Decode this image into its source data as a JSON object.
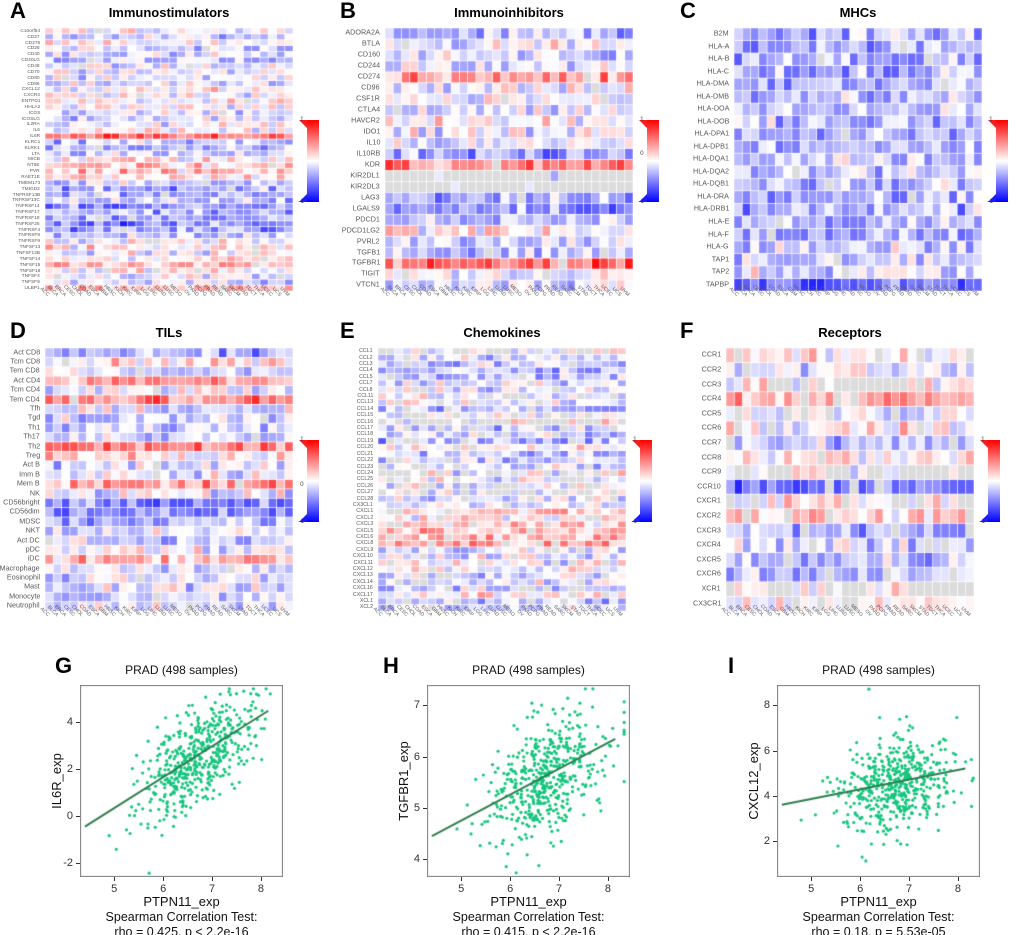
{
  "figure": {
    "heatmap_colors": {
      "positive": "#ff0000",
      "negative": "#0000ff",
      "na": "#dcdcdc"
    },
    "scatter_colors": {
      "point": "#17c57e",
      "line": "#2e7d4e"
    }
  },
  "cancer_types": [
    "ACC",
    "BLCA",
    "BRCA",
    "CESC",
    "CHOL",
    "COAD",
    "ESCA",
    "GBM",
    "HNSC",
    "KICH",
    "KIRC",
    "KIRP",
    "LGG",
    "LIHC",
    "LUAD",
    "LUSC",
    "MESO",
    "OV",
    "PAAD",
    "PCPG",
    "PRAD",
    "READ",
    "SARC",
    "SKCM",
    "STAD",
    "TGCT",
    "THCA",
    "UCEC",
    "UCS",
    "UVM"
  ],
  "chart_data": [
    {
      "type": "heatmap",
      "letter": "A",
      "title": "Immunostimulators",
      "value_range": [
        -1,
        1
      ],
      "seed": 101,
      "base_na": 0.03,
      "rows": [
        "C10orf54",
        "CD27",
        "CD276",
        "CD28",
        "CD40",
        "CD40LG",
        "CD48",
        "CD70",
        "CD80",
        "CD86",
        "CXCL12",
        "CXCR4",
        "ENTPD1",
        "HHLA2",
        "ICOS",
        "ICOSLG",
        "IL2RA",
        "IL6",
        "IL6R",
        "KLRC1",
        "KLRK1",
        "LTA",
        "MICB",
        "NT5E",
        "PVR",
        "RAET1E",
        "TMEM173",
        "TMIGD2",
        "TNFRSF13B",
        "TNFRSF13C",
        "TNFRSF14",
        "TNFRSF17",
        "TNFRSF18",
        "TNFRSF25",
        "TNFRSF4",
        "TNFRSF8",
        "TNFRSF9",
        "TNFSF13",
        "TNFSF13B",
        "TNFSF14",
        "TNFSF15",
        "TNFSF18",
        "TNFSF4",
        "TNFSF9",
        "ULBP1"
      ],
      "row_bias": [
        0.05,
        -0.15,
        0,
        -0.15,
        -0.1,
        -0.15,
        -0.1,
        -0.05,
        -0.1,
        -0.1,
        0.05,
        0,
        0.05,
        -0.05,
        -0.1,
        -0.1,
        -0.05,
        0,
        0.55,
        -0.25,
        -0.25,
        -0.2,
        0.1,
        0.15,
        0.2,
        0.1,
        -0.2,
        -0.3,
        -0.3,
        -0.25,
        -0.45,
        -0.3,
        -0.35,
        -0.5,
        -0.4,
        -0.15,
        -0.05,
        0.1,
        -0.05,
        0.1,
        0.35,
        0.05,
        -0.05,
        -0.1,
        0.3
      ],
      "row_na": {},
      "legend_ticks": [
        {
          "label": "1",
          "pos": 0
        },
        {
          "label": "-1",
          "pos": 1
        }
      ]
    },
    {
      "type": "heatmap",
      "letter": "B",
      "title": "Immunoinhibitors",
      "value_range": [
        -1,
        1
      ],
      "seed": 202,
      "base_na": 0.03,
      "rows": [
        "ADORA2A",
        "BTLA",
        "CD160",
        "CD244",
        "CD274",
        "CD96",
        "CSF1R",
        "CTLA4",
        "HAVCR2",
        "IDO1",
        "IL10",
        "IL10RB",
        "KDR",
        "KIR2DL1",
        "KIR2DL3",
        "LAG3",
        "LGALS9",
        "PDCD1",
        "PDCD1LG2",
        "PVRL2",
        "TGFB1",
        "TGFBR1",
        "TIGIT",
        "VTCN1"
      ],
      "row_bias": [
        -0.3,
        -0.05,
        -0.15,
        -0.1,
        0.4,
        -0.05,
        0,
        -0.1,
        0,
        -0.05,
        -0.1,
        -0.35,
        0.5,
        0,
        0,
        -0.35,
        -0.4,
        -0.25,
        0.1,
        -0.15,
        -0.2,
        0.55,
        0,
        -0.1
      ],
      "row_na": {
        "13": 0.95,
        "14": 0.95
      },
      "legend_ticks": [
        {
          "label": "1",
          "pos": 0
        },
        {
          "label": "0",
          "pos": 0.41
        },
        {
          "label": "-1",
          "pos": 1
        }
      ]
    },
    {
      "type": "heatmap",
      "letter": "C",
      "title": "MHCs",
      "value_range": [
        -1,
        1
      ],
      "seed": 303,
      "base_na": 0.015,
      "rows": [
        "B2M",
        "HLA-A",
        "HLA-B",
        "HLA-C",
        "HLA-DMA",
        "HLA-DMB",
        "HLA-DOA",
        "HLA-DOB",
        "HLA-DPA1",
        "HLA-DPB1",
        "HLA-DQA1",
        "HLA-DQA2",
        "HLA-DQB1",
        "HLA-DRA",
        "HLA-DRB1",
        "HLA-E",
        "HLA-F",
        "HLA-G",
        "TAP1",
        "TAP2",
        "TAPBP"
      ],
      "row_bias": [
        -0.3,
        -0.35,
        -0.3,
        -0.3,
        -0.35,
        -0.25,
        -0.2,
        -0.25,
        -0.3,
        -0.3,
        -0.2,
        -0.2,
        -0.25,
        -0.3,
        -0.3,
        -0.25,
        -0.35,
        -0.2,
        -0.25,
        -0.1,
        -0.55
      ],
      "row_na": {},
      "legend_ticks": [
        {
          "label": "1",
          "pos": 0
        },
        {
          "label": "-1",
          "pos": 1
        }
      ]
    },
    {
      "type": "heatmap",
      "letter": "D",
      "title": "TILs",
      "value_range": [
        -1,
        1
      ],
      "seed": 404,
      "base_na": 0.02,
      "rows": [
        "Act CD8",
        "Tcm CD8",
        "Tem CD8",
        "Act CD4",
        "Tcm CD4",
        "Tem CD4",
        "Tfh",
        "Tgd",
        "Th1",
        "Th17",
        "Th2",
        "Treg",
        "Act B",
        "Imm B",
        "Mem B",
        "NK",
        "CD56bright",
        "CD56dim",
        "MDSC",
        "NKT",
        "Act DC",
        "pDC",
        "iDC",
        "Macrophage",
        "Eosinophil",
        "Mast",
        "Monocyte",
        "Neutrophil"
      ],
      "row_bias": [
        -0.35,
        0.1,
        -0.15,
        0.35,
        -0.1,
        0.45,
        -0.1,
        -0.2,
        -0.2,
        -0.1,
        0.45,
        0.1,
        -0.15,
        -0.1,
        0.4,
        -0.05,
        -0.45,
        -0.5,
        -0.3,
        -0.1,
        -0.2,
        -0.05,
        0.25,
        -0.15,
        -0.15,
        -0.1,
        -0.25,
        -0.1
      ],
      "row_na": {},
      "legend_ticks": [
        {
          "label": "1",
          "pos": 0
        },
        {
          "label": "0",
          "pos": 0.55
        },
        {
          "label": "-1",
          "pos": 1
        }
      ]
    },
    {
      "type": "heatmap",
      "letter": "E",
      "title": "Chemokines",
      "value_range": [
        -1,
        1
      ],
      "seed": 505,
      "base_na": 0.08,
      "rows": [
        "CCL1",
        "CCL2",
        "CCL3",
        "CCL4",
        "CCL5",
        "CCL7",
        "CCL8",
        "CCL11",
        "CCL13",
        "CCL14",
        "CCL15",
        "CCL16",
        "CCL17",
        "CCL18",
        "CCL19",
        "CCL20",
        "CCL21",
        "CCL22",
        "CCL23",
        "CCL24",
        "CCL25",
        "CCL26",
        "CCL27",
        "CCL28",
        "CX3CL1",
        "CXCL1",
        "CXCL2",
        "CXCL3",
        "CXCL5",
        "CXCL6",
        "CXCL8",
        "CXCL9",
        "CXCL10",
        "CXCL11",
        "CXCL12",
        "CXCL13",
        "CXCL14",
        "CXCL16",
        "CXCL17",
        "XCL1",
        "XCL2"
      ],
      "row_bias": [
        0,
        -0.15,
        -0.2,
        -0.25,
        -0.25,
        -0.1,
        -0.1,
        -0.05,
        -0.1,
        -0.3,
        0,
        0,
        -0.25,
        -0.2,
        -0.3,
        0.05,
        -0.2,
        -0.2,
        -0.15,
        0,
        -0.05,
        -0.05,
        0,
        -0.1,
        -0.15,
        0.15,
        0.1,
        0.1,
        0.3,
        0.25,
        0.3,
        -0.1,
        -0.05,
        -0.05,
        0.05,
        -0.1,
        -0.1,
        -0.2,
        0.05,
        -0.2,
        -0.15
      ],
      "row_na": {
        "0": 0.45,
        "5": 0.2,
        "7": 0.2,
        "10": 0.3,
        "11": 0.6,
        "12": 0.2,
        "18": 0.2,
        "19": 0.45,
        "20": 0.2,
        "21": 0.25,
        "22": 0.45,
        "27": 0.15,
        "38": 0.2
      },
      "legend_ticks": [
        {
          "label": "1",
          "pos": 0
        },
        {
          "label": "-1",
          "pos": 1
        }
      ]
    },
    {
      "type": "heatmap",
      "letter": "F",
      "title": "Receptors",
      "value_range": [
        -1,
        1
      ],
      "seed": 606,
      "base_na": 0.08,
      "rows": [
        "CCR1",
        "CCR2",
        "CCR3",
        "CCR4",
        "CCR5",
        "CCR6",
        "CCR7",
        "CCR8",
        "CCR9",
        "CCR10",
        "CXCR1",
        "CXCR2",
        "CXCR3",
        "CXCR4",
        "CXCR5",
        "CXCR6",
        "XCR1",
        "CX3CR1"
      ],
      "row_bias": [
        0.1,
        -0.1,
        0,
        0.25,
        -0.05,
        0.05,
        -0.2,
        0.1,
        0,
        -0.5,
        0.05,
        0.15,
        -0.3,
        -0.15,
        -0.25,
        -0.25,
        0,
        0.05
      ],
      "row_na": {
        "2": 0.5,
        "8": 0.65,
        "10": 0.2,
        "14": 0.15,
        "16": 0.5
      },
      "legend_ticks": [
        {
          "label": "1",
          "pos": 0
        },
        {
          "label": "-1",
          "pos": 1
        }
      ]
    },
    {
      "type": "scatter",
      "letter": "G",
      "title": "PRAD (498 samples)",
      "xlabel": "PTPN11_exp",
      "ylabel": "IL6R_exp",
      "stats_line1": "Spearman Correlation Test:",
      "stats_line2": "rho = 0.425, p < 2.2e-16",
      "rho": 0.425,
      "n_points": 498,
      "xlim": [
        4.3,
        8.45
      ],
      "ylim": [
        -2.6,
        5.6
      ],
      "xticks": [
        "5",
        "6",
        "7",
        "8"
      ],
      "yticks": [
        "-2",
        "0",
        "2",
        "4"
      ],
      "regression_line": {
        "x1": 4.4,
        "y1": -0.45,
        "x2": 8.15,
        "y2": 4.5
      },
      "gen": {
        "x_mean": 6.75,
        "x_sd": 0.58,
        "slope": 1.32,
        "intercept": -6.33,
        "noise_sd": 1.0
      },
      "seed": 707
    },
    {
      "type": "scatter",
      "letter": "H",
      "title": "PRAD (498 samples)",
      "xlabel": "PTPN11_exp",
      "ylabel": "TGFBR1_exp",
      "stats_line1": "Spearman Correlation Test:",
      "stats_line2": "rho = 0.415, p < 2.2e-16",
      "rho": 0.415,
      "n_points": 498,
      "xlim": [
        4.3,
        8.45
      ],
      "ylim": [
        3.65,
        7.4
      ],
      "xticks": [
        "5",
        "6",
        "7",
        "8"
      ],
      "yticks": [
        "4",
        "5",
        "6",
        "7"
      ],
      "regression_line": {
        "x1": 4.4,
        "y1": 4.45,
        "x2": 8.15,
        "y2": 6.35
      },
      "gen": {
        "x_mean": 6.75,
        "x_sd": 0.58,
        "slope": 0.493,
        "intercept": 2.28,
        "noise_sd": 0.55
      },
      "seed": 808
    },
    {
      "type": "scatter",
      "letter": "I",
      "title": "PRAD (498 samples)",
      "xlabel": "PTPN11_exp",
      "ylabel": "CXCL12_exp",
      "stats_line1": "Spearman Correlation Test:",
      "stats_line2": "rho = 0.18, p = 5.53e-05",
      "rho": 0.18,
      "n_points": 498,
      "xlim": [
        4.3,
        8.45
      ],
      "ylim": [
        0.4,
        8.9
      ],
      "xticks": [
        "5",
        "6",
        "7",
        "8"
      ],
      "yticks": [
        "2",
        "4",
        "6",
        "8"
      ],
      "regression_line": {
        "x1": 4.4,
        "y1": 3.6,
        "x2": 8.15,
        "y2": 5.2
      },
      "gen": {
        "x_mean": 6.75,
        "x_sd": 0.58,
        "slope": 0.42,
        "intercept": 1.66,
        "noise_sd": 1.05
      },
      "seed": 909
    }
  ]
}
